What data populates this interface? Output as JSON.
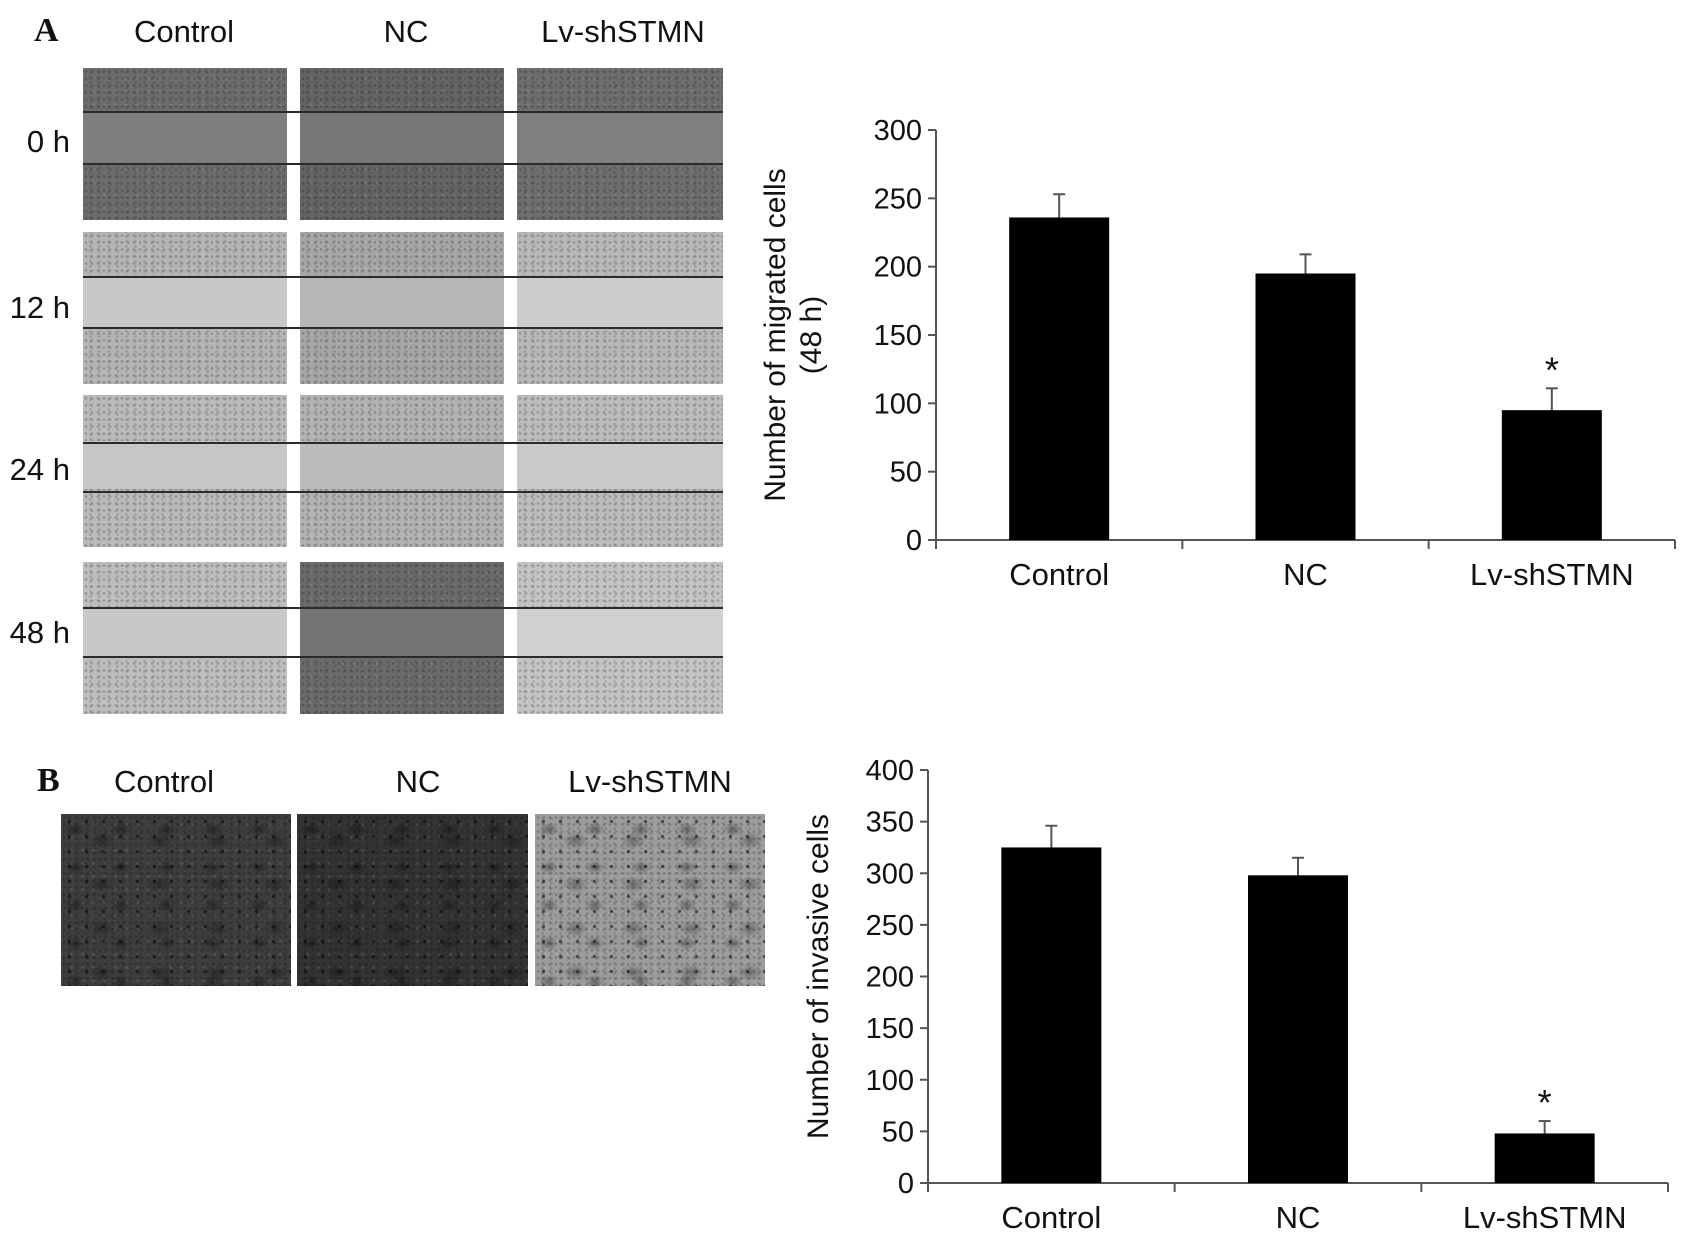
{
  "panel_a": {
    "letter": "A",
    "columns": [
      "Control",
      "NC",
      "Lv-shSTMN"
    ],
    "rows": [
      "0 h",
      "12 h",
      "24 h",
      "48 h"
    ]
  },
  "panel_b": {
    "letter": "B",
    "columns": [
      "Control",
      "NC",
      "Lv-shSTMN"
    ]
  },
  "colors": {
    "bar": "#000000",
    "axis": "#555555"
  },
  "chart_data": [
    {
      "type": "bar",
      "categories": [
        "Control",
        "NC",
        "Lv-shSTMN"
      ],
      "values": [
        236,
        195,
        95
      ],
      "errors": [
        17,
        14,
        16
      ],
      "annotations": [
        "",
        "",
        "*"
      ],
      "title": "",
      "xlabel": "",
      "ylabel_lines": [
        "Number of migrated cells",
        "(48 h)"
      ],
      "ylim": [
        0,
        300
      ],
      "yticks": [
        0,
        50,
        100,
        150,
        200,
        250,
        300
      ],
      "grid": false,
      "legend": "none"
    },
    {
      "type": "bar",
      "categories": [
        "Control",
        "NC",
        "Lv-shSTMN"
      ],
      "values": [
        325,
        298,
        48
      ],
      "errors": [
        21,
        17,
        12
      ],
      "annotations": [
        "",
        "",
        "*"
      ],
      "title": "",
      "xlabel": "",
      "ylabel_lines": [
        "Number of invasive cells"
      ],
      "ylim": [
        0,
        400
      ],
      "yticks": [
        0,
        50,
        100,
        150,
        200,
        250,
        300,
        350,
        400
      ],
      "grid": false,
      "legend": "none"
    }
  ]
}
